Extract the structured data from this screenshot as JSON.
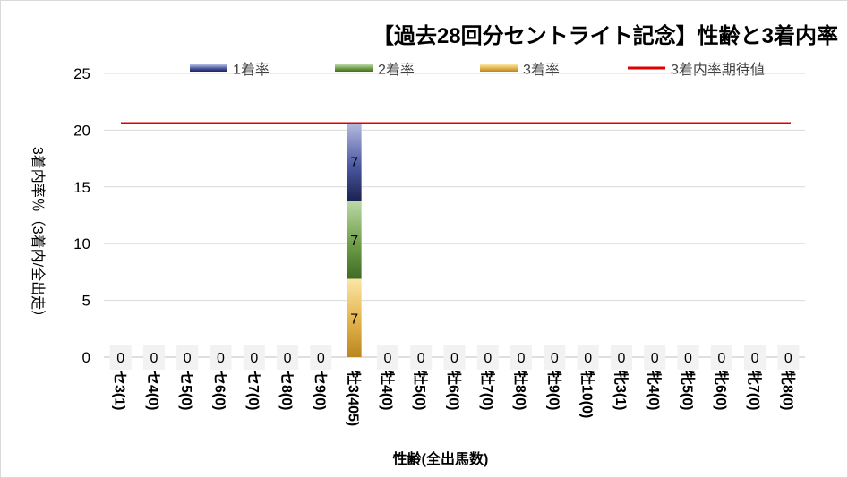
{
  "chart_data": {
    "type": "bar",
    "title": "【過去28回分セントライト記念】性齢と3着内率",
    "xlabel": "性齢(全出馬数)",
    "ylabel": "3着内率％（3着内/全出走）",
    "ylim": [
      0,
      25
    ],
    "yticks": [
      "0",
      "5",
      "10",
      "15",
      "20",
      "25"
    ],
    "grid": true,
    "legend_position": "top",
    "categories": [
      "セ3(1)",
      "セ4(0)",
      "セ5(0)",
      "セ6(0)",
      "セ7(0)",
      "セ8(0)",
      "セ9(0)",
      "牡3(405)",
      "牡4(0)",
      "牡5(0)",
      "牡6(0)",
      "牡7(0)",
      "牡8(0)",
      "牡9(0)",
      "牡10(0)",
      "牝3(1)",
      "牝4(0)",
      "牝5(0)",
      "牝6(0)",
      "牝7(0)",
      "牝8(0)"
    ],
    "series": [
      {
        "name": "1着率",
        "color": "#5a67ad",
        "values": [
          0,
          0,
          0,
          0,
          0,
          0,
          0,
          6.9,
          0,
          0,
          0,
          0,
          0,
          0,
          0,
          0,
          0,
          0,
          0,
          0,
          0
        ]
      },
      {
        "name": "2着率",
        "color": "#6a9a45",
        "values": [
          0,
          0,
          0,
          0,
          0,
          0,
          0,
          6.9,
          0,
          0,
          0,
          0,
          0,
          0,
          0,
          0,
          0,
          0,
          0,
          0,
          0
        ]
      },
      {
        "name": "3着率",
        "color": "#d7a22e",
        "values": [
          0,
          0,
          0,
          0,
          0,
          0,
          0,
          6.9,
          0,
          0,
          0,
          0,
          0,
          0,
          0,
          0,
          0,
          0,
          0,
          0,
          0
        ]
      }
    ],
    "data_labels": {
      "1着率": [
        "0",
        "0",
        "0",
        "0",
        "0",
        "0",
        "0",
        "7",
        "0",
        "0",
        "0",
        "0",
        "0",
        "0",
        "0",
        "0",
        "0",
        "0",
        "0",
        "0",
        "0"
      ],
      "2着率": [
        "",
        "",
        "",
        "",
        "",
        "",
        "",
        "7",
        "",
        "",
        "",
        "",
        "",
        "",
        "",
        "",
        "",
        "",
        "",
        "",
        ""
      ],
      "3着率": [
        "",
        "",
        "",
        "",
        "",
        "",
        "",
        "7",
        "",
        "",
        "",
        "",
        "",
        "",
        "",
        "",
        "",
        "",
        "",
        "",
        ""
      ]
    },
    "reference_line": {
      "name": "3着内率期待値",
      "color": "#e00000",
      "value": 20.6
    }
  }
}
